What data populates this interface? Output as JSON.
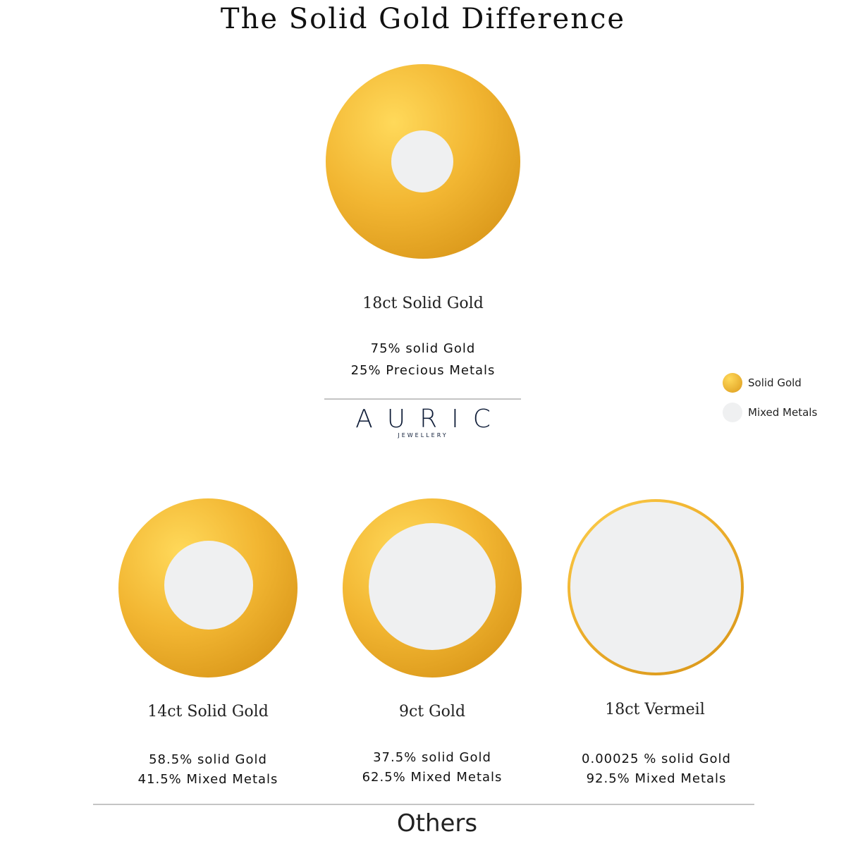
{
  "title": "The Solid Gold Difference",
  "colors": {
    "gold": "#f2b632",
    "mixed_metals": "#eff0f1",
    "logo": "#0f1d38"
  },
  "featured": {
    "name": "18ct Solid Gold",
    "line1": "75% solid Gold",
    "line2": "25% Precious Metals",
    "gold_percent": 75
  },
  "logo": {
    "brand": "AURIC",
    "sub": "JEWELLERY"
  },
  "legend": [
    {
      "label": "Solid Gold",
      "color": "#f2b632"
    },
    {
      "label": "Mixed Metals",
      "color": "#eff0f1"
    }
  ],
  "others": [
    {
      "name": "14ct Solid Gold",
      "line1": "58.5% solid Gold",
      "line2": "41.5% Mixed Metals",
      "gold_percent": 58.5
    },
    {
      "name": "9ct Gold",
      "line1": "37.5% solid Gold",
      "line2": "62.5% Mixed Metals",
      "gold_percent": 37.5
    },
    {
      "name": "18ct Vermeil",
      "line1": "0.00025 % solid Gold",
      "line2": "92.5% Mixed Metals",
      "gold_percent": 0.00025
    }
  ],
  "others_label": "Others"
}
